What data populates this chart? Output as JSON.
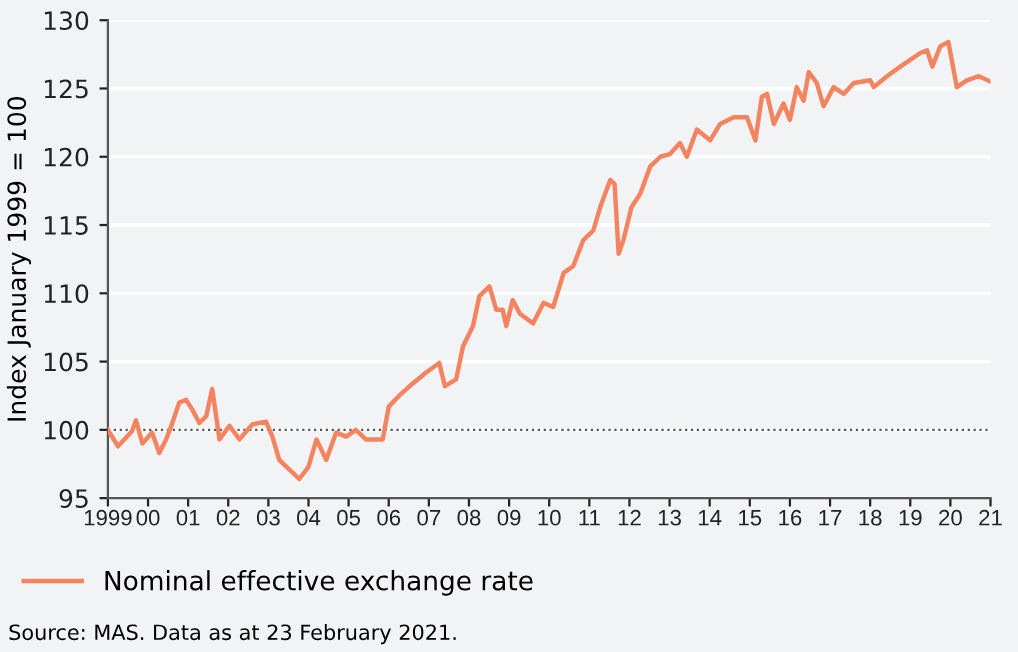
{
  "chart_data": {
    "type": "line",
    "ylabel": "Index January 1999 = 100",
    "annotations": [
      "Source: MAS. Data as at 23 February 2021."
    ],
    "xlim": [
      1999,
      2021
    ],
    "xticks": [
      {
        "value": 1999,
        "label": "1999"
      },
      {
        "value": 2000,
        "label": "00"
      },
      {
        "value": 2001,
        "label": "01"
      },
      {
        "value": 2002,
        "label": "02"
      },
      {
        "value": 2003,
        "label": "03"
      },
      {
        "value": 2004,
        "label": "04"
      },
      {
        "value": 2005,
        "label": "05"
      },
      {
        "value": 2006,
        "label": "06"
      },
      {
        "value": 2007,
        "label": "07"
      },
      {
        "value": 2008,
        "label": "08"
      },
      {
        "value": 2009,
        "label": "09"
      },
      {
        "value": 2010,
        "label": "10"
      },
      {
        "value": 2011,
        "label": "11"
      },
      {
        "value": 2012,
        "label": "12"
      },
      {
        "value": 2013,
        "label": "13"
      },
      {
        "value": 2014,
        "label": "14"
      },
      {
        "value": 2015,
        "label": "15"
      },
      {
        "value": 2016,
        "label": "16"
      },
      {
        "value": 2017,
        "label": "17"
      },
      {
        "value": 2018,
        "label": "18"
      },
      {
        "value": 2019,
        "label": "19"
      },
      {
        "value": 2020,
        "label": "20"
      },
      {
        "value": 2021,
        "label": "21"
      }
    ],
    "ylim": [
      95,
      130
    ],
    "yticks": [
      95,
      100,
      105,
      110,
      115,
      120,
      125,
      130
    ],
    "grid": "y",
    "legend": "bottom",
    "marker": "none",
    "line_style": "solid",
    "ref_lines": [
      {
        "axis": "y",
        "value": 100,
        "color": "#555555",
        "line_style": "dotted"
      }
    ],
    "series": [
      {
        "name": "Nominal effective exchange rate",
        "color": "#f4845f",
        "x": [
          1999.0,
          1999.25,
          1999.6,
          1999.7,
          1999.86,
          2000.1,
          2000.28,
          2000.45,
          2000.58,
          2000.78,
          2000.95,
          2001.1,
          2001.28,
          2001.45,
          2001.6,
          2001.78,
          2002.03,
          2002.28,
          2002.6,
          2002.94,
          2003.1,
          2003.27,
          2003.52,
          2003.77,
          2004.0,
          2004.2,
          2004.44,
          2004.69,
          2004.94,
          2005.18,
          2005.43,
          2005.68,
          2005.85,
          2006.0,
          2006.26,
          2006.6,
          2006.93,
          2007.26,
          2007.4,
          2007.68,
          2007.85,
          2008.1,
          2008.26,
          2008.51,
          2008.68,
          2008.84,
          2008.93,
          2009.09,
          2009.27,
          2009.6,
          2009.86,
          2010.1,
          2010.36,
          2010.6,
          2010.85,
          2011.1,
          2011.27,
          2011.52,
          2011.63,
          2011.73,
          2011.85,
          2012.05,
          2012.27,
          2012.52,
          2012.77,
          2013.01,
          2013.26,
          2013.43,
          2013.68,
          2014.01,
          2014.26,
          2014.6,
          2014.93,
          2015.14,
          2015.3,
          2015.43,
          2015.6,
          2015.84,
          2016.0,
          2016.17,
          2016.34,
          2016.47,
          2016.67,
          2016.84,
          2017.09,
          2017.34,
          2017.59,
          2018.0,
          2018.09,
          2018.42,
          2018.75,
          2019.25,
          2019.42,
          2019.55,
          2019.75,
          2019.95,
          2020.16,
          2020.41,
          2020.71,
          2021.0
        ],
        "values": [
          100.0,
          98.8,
          99.9,
          100.7,
          99.0,
          99.8,
          98.3,
          99.3,
          100.3,
          102.0,
          102.2,
          101.5,
          100.5,
          101.0,
          103.0,
          99.3,
          100.3,
          99.3,
          100.4,
          100.6,
          99.5,
          97.8,
          97.1,
          96.4,
          97.3,
          99.3,
          97.8,
          99.8,
          99.5,
          100.0,
          99.3,
          99.3,
          99.3,
          101.7,
          102.5,
          103.4,
          104.2,
          104.9,
          103.2,
          103.7,
          106.1,
          107.6,
          109.8,
          110.5,
          108.8,
          108.8,
          107.6,
          109.5,
          108.5,
          107.8,
          109.3,
          109.0,
          111.5,
          112.0,
          113.9,
          114.6,
          116.3,
          118.3,
          118.0,
          112.9,
          113.9,
          116.3,
          117.3,
          119.3,
          120.0,
          120.2,
          121.0,
          120.0,
          122.0,
          121.2,
          122.4,
          122.9,
          122.9,
          121.2,
          124.4,
          124.6,
          122.4,
          123.9,
          122.7,
          125.1,
          124.1,
          126.2,
          125.4,
          123.7,
          125.1,
          124.6,
          125.4,
          125.6,
          125.1,
          125.9,
          126.6,
          127.6,
          127.8,
          126.6,
          128.1,
          128.4,
          125.1,
          125.6,
          125.9,
          125.5
        ]
      }
    ]
  }
}
